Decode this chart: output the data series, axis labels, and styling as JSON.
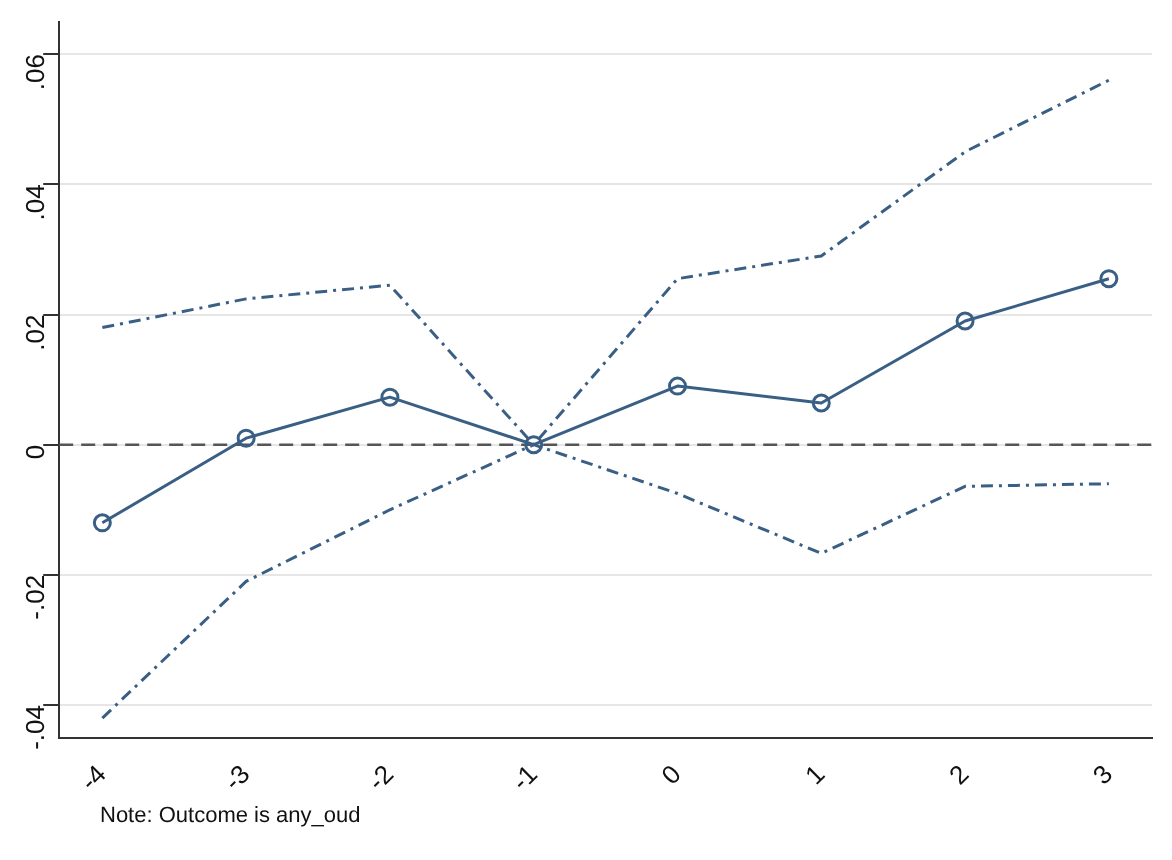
{
  "chart_data": {
    "type": "line",
    "x": [
      -4,
      -3,
      -2,
      -1,
      0,
      1,
      2,
      3
    ],
    "series": [
      {
        "color": "#3a5f85",
        "values": [
          -0.012,
          0.001,
          0.0073,
          0,
          0.009,
          0.0064,
          0.019,
          0.0255
        ]
      },
      {
        "color": "#3a5f85",
        "line_style": "dashed",
        "marker": "none",
        "values": [
          0.018,
          0.0224,
          0.0245,
          0,
          0.0255,
          0.029,
          0.045,
          0.056
        ]
      },
      {
        "color": "#3a5f85",
        "line_style": "dashed",
        "marker": "none",
        "values": [
          -0.042,
          -0.021,
          -0.01,
          0,
          -0.0075,
          -0.0167,
          -0.0064,
          -0.006
        ]
      }
    ],
    "xlim": [
      -4.3,
      3.3
    ],
    "xticks": [
      -4,
      -3,
      -2,
      -1,
      0,
      1,
      2,
      3
    ],
    "ylim": [
      -0.045,
      0.065
    ],
    "yticks": [
      {
        "value": -0.04,
        "label": "-.04"
      },
      {
        "value": -0.02,
        "label": "-.02"
      },
      {
        "value": 0,
        "label": "0"
      },
      {
        "value": 0.02,
        "label": ".02"
      },
      {
        "value": 0.04,
        "label": ".04"
      },
      {
        "value": 0.06,
        "label": ".06"
      }
    ],
    "ref_lines": [
      {
        "axis": "y",
        "value": 0,
        "color": "#555555",
        "line_style": "dashed"
      }
    ],
    "grid": "y",
    "marker": "circle",
    "line_style": "solid",
    "legend": false,
    "annotations": [
      "Note: Outcome is any_oud"
    ]
  }
}
